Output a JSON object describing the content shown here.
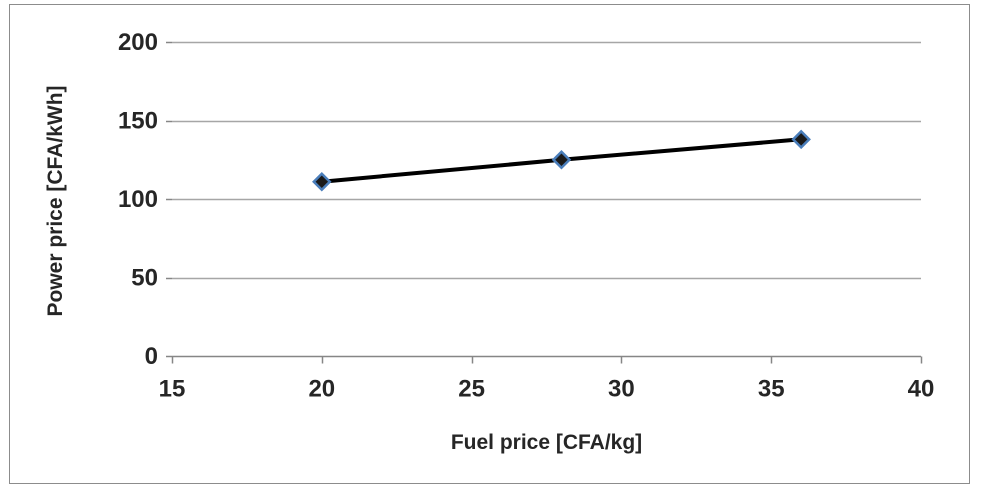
{
  "chart_data": {
    "type": "line",
    "title": "",
    "xlabel": "Fuel price [CFA/kg]",
    "ylabel": "Power price [CFA/kWh]",
    "xlim": [
      15,
      40
    ],
    "ylim": [
      0,
      200
    ],
    "xticks": [
      15,
      20,
      25,
      30,
      35,
      40
    ],
    "yticks": [
      0,
      50,
      100,
      150,
      200
    ],
    "grid": "horizontal",
    "legend": "none",
    "series": [
      {
        "x": [
          20,
          28,
          36
        ],
        "y": [
          111,
          125,
          138
        ],
        "marker": "diamond",
        "line_color": "#000000",
        "marker_fill": "#1a1a1a",
        "marker_edge": "#4a7ebb"
      }
    ],
    "colors": {
      "gridline": "#a6a6a6",
      "axis": "#868686",
      "text": "#262626"
    }
  }
}
